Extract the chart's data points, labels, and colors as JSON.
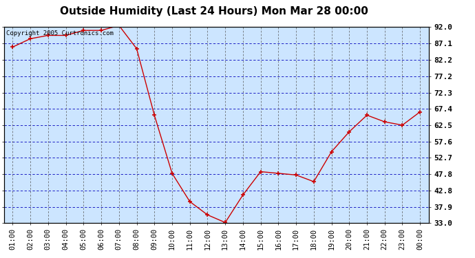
{
  "title": "Outside Humidity (Last 24 Hours) Mon Mar 28 00:00",
  "copyright": "Copyright 2005 Curtronics.com",
  "x_labels": [
    "01:00",
    "02:00",
    "03:00",
    "04:00",
    "05:00",
    "06:00",
    "07:00",
    "08:00",
    "09:00",
    "10:00",
    "11:00",
    "12:00",
    "13:00",
    "14:00",
    "15:00",
    "16:00",
    "17:00",
    "18:00",
    "19:00",
    "20:00",
    "21:00",
    "22:00",
    "23:00",
    "00:00"
  ],
  "x_values": [
    1,
    2,
    3,
    4,
    5,
    6,
    7,
    8,
    9,
    10,
    11,
    12,
    13,
    14,
    15,
    16,
    17,
    18,
    19,
    20,
    21,
    22,
    23,
    24
  ],
  "y_values": [
    86.0,
    88.5,
    89.5,
    89.5,
    91.0,
    91.0,
    92.5,
    85.5,
    65.5,
    48.0,
    39.5,
    35.5,
    33.2,
    41.5,
    48.5,
    48.0,
    47.5,
    45.5,
    54.5,
    60.5,
    65.5,
    63.5,
    62.5,
    66.5
  ],
  "y_ticks": [
    33.0,
    37.9,
    42.8,
    47.8,
    52.7,
    57.6,
    62.5,
    67.4,
    72.3,
    77.2,
    82.2,
    87.1,
    92.0
  ],
  "y_min": 33.0,
  "y_max": 92.0,
  "line_color": "#cc0000",
  "marker_color": "#cc0000",
  "bg_color": "#cce5ff",
  "outer_bg_color": "#ffffff",
  "grid_color_h": "#0000bb",
  "grid_color_v": "#555555",
  "title_fontsize": 11,
  "tick_fontsize": 7.5,
  "copyright_fontsize": 6.5,
  "ylabel_fontsize": 8,
  "ylabel_fontweight": "bold"
}
